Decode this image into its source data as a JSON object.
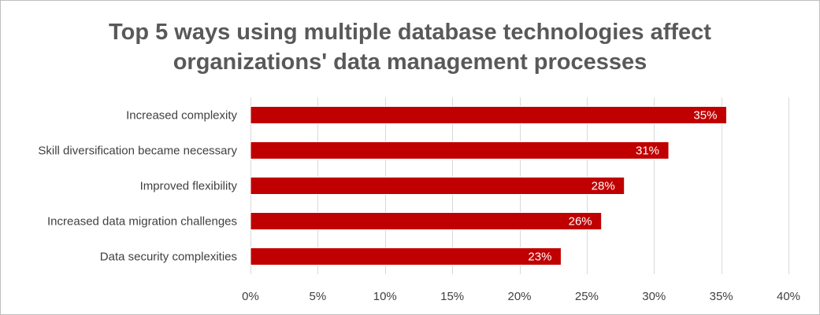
{
  "chart_data": {
    "type": "bar",
    "orientation": "horizontal",
    "title_lines": [
      "Top 5 ways using multiple database technologies affect",
      "organizations' data management processes"
    ],
    "categories": [
      "Increased complexity",
      "Skill diversification became necessary",
      "Improved flexibility",
      "Increased data migration challenges",
      "Data security complexities"
    ],
    "values": [
      35.4,
      31.1,
      27.8,
      26.1,
      23.1
    ],
    "value_labels": [
      "35%",
      "31%",
      "28%",
      "26%",
      "23%"
    ],
    "xlim": [
      0,
      40
    ],
    "xticks": [
      0,
      5,
      10,
      15,
      20,
      25,
      30,
      35,
      40
    ],
    "xtick_labels": [
      "0%",
      "5%",
      "10%",
      "15%",
      "20%",
      "25%",
      "30%",
      "35%",
      "40%"
    ],
    "grid": "vertical",
    "legend": "none",
    "colors": {
      "bar": "#c00000",
      "bar_edge": "#ffffff",
      "grid": "#d9d9d9",
      "title": "#595959",
      "text": "#404040"
    }
  }
}
